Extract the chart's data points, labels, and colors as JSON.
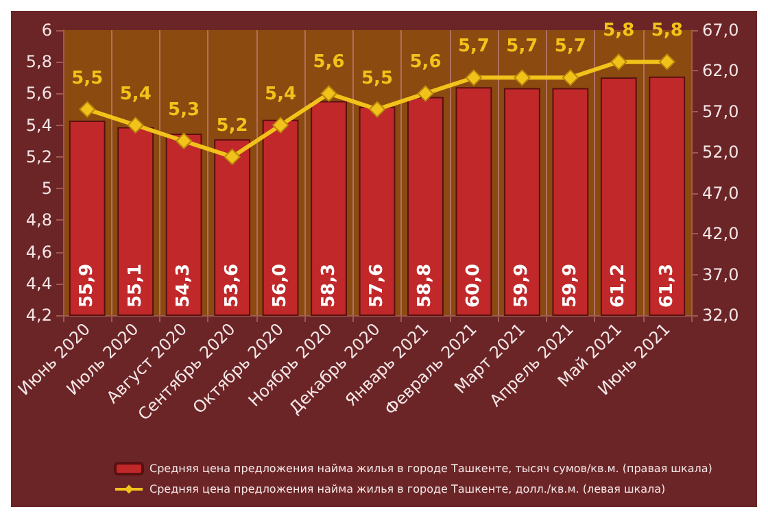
{
  "chart_data": {
    "type": "bar",
    "categories": [
      "Июнь 2020",
      "Июль 2020",
      "Август 2020",
      "Сентябрь 2020",
      "Октябрь 2020",
      "Ноябрь 2020",
      "Декабрь 2020",
      "Январь 2021",
      "Февраль 2021",
      "Март 2021",
      "Апрель 2021",
      "Май 2021",
      "Июнь 2021"
    ],
    "series": [
      {
        "name": "Средняя цена предложения найма жилья в городе Ташкенте, тысяч сумов/кв.м. (правая шкала)",
        "axis": "y2",
        "color": "#c0282a",
        "values": [
          55.9,
          55.1,
          54.3,
          53.6,
          56.0,
          58.3,
          57.6,
          58.8,
          60.0,
          59.9,
          59.9,
          61.2,
          61.3
        ],
        "value_labels": [
          "55,9",
          "55,1",
          "54,3",
          "53,6",
          "56,0",
          "58,3",
          "57,6",
          "58,8",
          "60,0",
          "59,9",
          "59,9",
          "61,2",
          "61,3"
        ]
      },
      {
        "name": "Средняя цена предложения найма жилья в городе Ташкенте, долл./кв.м. (левая шкала)",
        "type": "line",
        "color": "#f2c21b",
        "marker": "diamond",
        "values": [
          5.5,
          5.4,
          5.3,
          5.2,
          5.4,
          5.6,
          5.5,
          5.6,
          5.7,
          5.7,
          5.7,
          5.8,
          5.8
        ],
        "value_labels": [
          "5,5",
          "5,4",
          "5,3",
          "5,2",
          "5,4",
          "5,6",
          "5,5",
          "5,6",
          "5,7",
          "5,7",
          "5,7",
          "5,8",
          "5,8"
        ]
      }
    ],
    "ylim": [
      4.2,
      6
    ],
    "yticks": [
      {
        "value": 4.2,
        "label": "4,2"
      },
      {
        "value": 4.4,
        "label": "4,4"
      },
      {
        "value": 4.6,
        "label": "4,6"
      },
      {
        "value": 4.8,
        "label": "4,8"
      },
      5,
      {
        "value": 5.2,
        "label": "5,2"
      },
      {
        "value": 5.4,
        "label": "5,4"
      },
      {
        "value": 5.6,
        "label": "5,6"
      },
      {
        "value": 5.8,
        "label": "5,8"
      },
      6
    ],
    "y2lim": [
      32,
      67
    ],
    "y2ticks": [
      {
        "value": 32,
        "label": "32,0"
      },
      {
        "value": 37,
        "label": "37,0"
      },
      {
        "value": 42,
        "label": "42,0"
      },
      {
        "value": 47,
        "label": "47,0"
      },
      {
        "value": 52,
        "label": "52,0"
      },
      {
        "value": 57,
        "label": "57,0"
      },
      {
        "value": 62,
        "label": "62,0"
      },
      {
        "value": 67,
        "label": "67,0"
      }
    ],
    "grid": "x",
    "legend": "bottom"
  }
}
